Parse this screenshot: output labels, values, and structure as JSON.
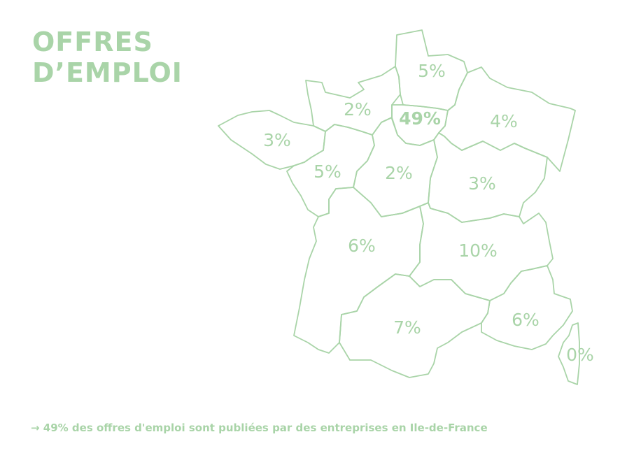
{
  "title": {
    "line1": "OFFRES",
    "line2": "D’EMPLOI"
  },
  "colors": {
    "accent": "#a9d4a8",
    "background": "#ffffff"
  },
  "regions": [
    {
      "name": "hauts-de-france",
      "value": "5%",
      "highlight": false
    },
    {
      "name": "normandie",
      "value": "2%",
      "highlight": false
    },
    {
      "name": "ile-de-france",
      "value": "49%",
      "highlight": true
    },
    {
      "name": "grand-est",
      "value": "4%",
      "highlight": false
    },
    {
      "name": "bretagne",
      "value": "3%",
      "highlight": false
    },
    {
      "name": "pays-de-la-loire",
      "value": "5%",
      "highlight": false
    },
    {
      "name": "centre-val-de-loire",
      "value": "2%",
      "highlight": false
    },
    {
      "name": "bourgogne-franche-comte",
      "value": "3%",
      "highlight": false
    },
    {
      "name": "nouvelle-aquitaine",
      "value": "6%",
      "highlight": false
    },
    {
      "name": "auvergne-rhone-alpes",
      "value": "10%",
      "highlight": false
    },
    {
      "name": "occitanie",
      "value": "7%",
      "highlight": false
    },
    {
      "name": "provence-alpes-cote-dazur",
      "value": "6%",
      "highlight": false
    },
    {
      "name": "corse",
      "value": "0%",
      "highlight": false
    }
  ],
  "footer": {
    "text": "→ 49% des offres d'emploi sont publiées par des entreprises en Ile-de-France"
  }
}
